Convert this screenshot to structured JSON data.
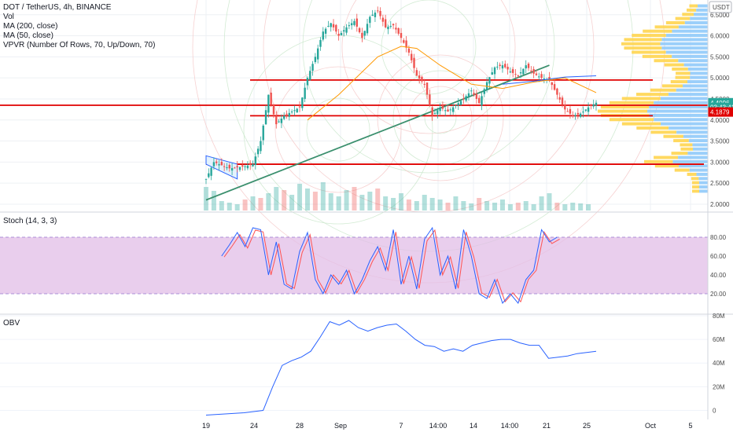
{
  "header": {
    "title": "DOT / TetherUS, 4h, BINANCE",
    "indicators": [
      "Vol",
      "MA (200, close)",
      "MA (50, close)",
      "VPVR (Number Of Rows, 70, Up/Down, 70)"
    ]
  },
  "currency_badge": "USDT",
  "price_tags": {
    "current": "4.4096",
    "countdown": "03:43:41",
    "level": "4.1879"
  },
  "colors": {
    "up": "#26a69a",
    "down": "#ef5350",
    "ma200": "#2962ff",
    "ma50": "#ff9800",
    "trendline": "#3a8f6d",
    "level_line": "#e00000",
    "stoch_band": "#e1bee7",
    "stoch_k": "#2962ff",
    "stoch_d": "#ff5252",
    "obv": "#2962ff",
    "vp_up": "#ffd54f",
    "vp_down": "#90caf9"
  },
  "chart_data": [
    {
      "type": "candlestick",
      "pane": "price",
      "symbol": "DOT / TetherUS",
      "timeframe": "4h",
      "exchange": "BINANCE",
      "ylim": [
        1.85,
        6.85
      ],
      "y_ticks": [
        2.0,
        2.5,
        3.0,
        3.5,
        4.0,
        4.5,
        5.0,
        5.5,
        6.0,
        6.5
      ],
      "y_tick_labels": [
        "2.0000",
        "2.5000",
        "3.0000",
        "3.5000",
        "4.0000",
        "4.5000",
        "5.0000",
        "5.5000",
        "6.0000",
        "6.5000"
      ],
      "x_tick_labels": [
        "19",
        "24",
        "28",
        "Sep",
        "7",
        "14:00",
        "14",
        "14:00",
        "21",
        "25",
        "Oct",
        "5"
      ],
      "price_path": [
        [
          0,
          2.6
        ],
        [
          1,
          3.0
        ],
        [
          3,
          2.85
        ],
        [
          5,
          2.9
        ],
        [
          6,
          2.95
        ],
        [
          7,
          3.5
        ],
        [
          8,
          4.6
        ],
        [
          9,
          3.9
        ],
        [
          10,
          4.1
        ],
        [
          12,
          4.3
        ],
        [
          13,
          5.0
        ],
        [
          14,
          5.5
        ],
        [
          15,
          6.1
        ],
        [
          16,
          6.3
        ],
        [
          17,
          6.0
        ],
        [
          18,
          6.2
        ],
        [
          19,
          6.35
        ],
        [
          20,
          5.95
        ],
        [
          21,
          6.45
        ],
        [
          22,
          6.6
        ],
        [
          23,
          6.2
        ],
        [
          24,
          6.25
        ],
        [
          25,
          5.95
        ],
        [
          26,
          5.6
        ],
        [
          27,
          5.05
        ],
        [
          28,
          4.85
        ],
        [
          29,
          4.1
        ],
        [
          30,
          4.3
        ],
        [
          31,
          4.2
        ],
        [
          32,
          4.35
        ],
        [
          33,
          4.5
        ],
        [
          34,
          4.7
        ],
        [
          35,
          4.4
        ],
        [
          36,
          4.9
        ],
        [
          37,
          5.25
        ],
        [
          38,
          5.3
        ],
        [
          39,
          5.15
        ],
        [
          40,
          5.05
        ],
        [
          41,
          5.3
        ],
        [
          42,
          5.1
        ],
        [
          43,
          5.0
        ],
        [
          44,
          4.95
        ],
        [
          45,
          4.6
        ],
        [
          46,
          4.25
        ],
        [
          47,
          4.1
        ],
        [
          48,
          4.15
        ],
        [
          49,
          4.3
        ],
        [
          50,
          4.41
        ]
      ],
      "horizontal_levels": [
        4.95,
        4.35,
        4.1,
        2.95
      ],
      "trendline": [
        [
          0,
          2.1
        ],
        [
          44,
          5.3
        ]
      ],
      "ma50": [
        [
          13,
          4.0
        ],
        [
          17,
          4.6
        ],
        [
          22,
          5.5
        ],
        [
          25,
          5.75
        ],
        [
          27,
          5.7
        ],
        [
          30,
          5.3
        ],
        [
          34,
          4.85
        ],
        [
          38,
          4.75
        ],
        [
          42,
          4.9
        ],
        [
          46,
          5.0
        ],
        [
          50,
          4.65
        ]
      ],
      "ma200": [
        [
          38,
          4.85
        ],
        [
          42,
          4.92
        ],
        [
          46,
          5.02
        ],
        [
          50,
          5.05
        ]
      ]
    },
    {
      "type": "histogram",
      "pane": "volume_profile",
      "name": "VPVR",
      "note": "horizontal volume-by-price, up/down split"
    },
    {
      "type": "line",
      "pane": "stoch",
      "title": "Stoch (14, 3, 3)",
      "ylim": [
        0,
        100
      ],
      "y_ticks": [
        20,
        40,
        60,
        80
      ],
      "y_tick_labels": [
        "20.00",
        "40.00",
        "60.00",
        "80.00"
      ],
      "band": [
        20,
        80
      ],
      "k": [
        [
          2,
          60
        ],
        [
          3,
          72
        ],
        [
          4,
          85
        ],
        [
          5,
          70
        ],
        [
          6,
          90
        ],
        [
          7,
          88
        ],
        [
          8,
          40
        ],
        [
          9,
          75
        ],
        [
          10,
          30
        ],
        [
          11,
          25
        ],
        [
          12,
          65
        ],
        [
          13,
          85
        ],
        [
          14,
          35
        ],
        [
          15,
          20
        ],
        [
          16,
          40
        ],
        [
          17,
          30
        ],
        [
          18,
          45
        ],
        [
          19,
          20
        ],
        [
          20,
          35
        ],
        [
          21,
          55
        ],
        [
          22,
          70
        ],
        [
          23,
          45
        ],
        [
          24,
          88
        ],
        [
          25,
          30
        ],
        [
          26,
          60
        ],
        [
          27,
          25
        ],
        [
          28,
          78
        ],
        [
          29,
          90
        ],
        [
          30,
          40
        ],
        [
          31,
          60
        ],
        [
          32,
          25
        ],
        [
          33,
          88
        ],
        [
          34,
          60
        ],
        [
          35,
          20
        ],
        [
          36,
          15
        ],
        [
          37,
          35
        ],
        [
          38,
          10
        ],
        [
          39,
          20
        ],
        [
          40,
          10
        ],
        [
          41,
          35
        ],
        [
          42,
          45
        ],
        [
          43,
          88
        ],
        [
          44,
          75
        ],
        [
          45,
          80
        ]
      ],
      "d_offset": 0.8
    },
    {
      "type": "line",
      "pane": "obv",
      "title": "OBV",
      "ylim": [
        -5,
        80
      ],
      "y_ticks": [
        0,
        20,
        40,
        60,
        80
      ],
      "y_tick_labels": [
        "0",
        "20M",
        "40M",
        "60M",
        "80M"
      ],
      "values": [
        [
          0,
          -4
        ],
        [
          2,
          -3
        ],
        [
          4,
          -2
        ],
        [
          6,
          0
        ],
        [
          7,
          20
        ],
        [
          8,
          38
        ],
        [
          9,
          42
        ],
        [
          10,
          45
        ],
        [
          11,
          50
        ],
        [
          12,
          62
        ],
        [
          13,
          75
        ],
        [
          14,
          72
        ],
        [
          15,
          76
        ],
        [
          16,
          70
        ],
        [
          17,
          67
        ],
        [
          18,
          70
        ],
        [
          19,
          72
        ],
        [
          20,
          73
        ],
        [
          21,
          67
        ],
        [
          22,
          60
        ],
        [
          23,
          55
        ],
        [
          24,
          54
        ],
        [
          25,
          50
        ],
        [
          26,
          52
        ],
        [
          27,
          50
        ],
        [
          28,
          55
        ],
        [
          29,
          57
        ],
        [
          30,
          59
        ],
        [
          31,
          60
        ],
        [
          32,
          60
        ],
        [
          33,
          57
        ],
        [
          34,
          55
        ],
        [
          35,
          55
        ],
        [
          36,
          44
        ],
        [
          37,
          45
        ],
        [
          38,
          46
        ],
        [
          39,
          48
        ],
        [
          40,
          49
        ],
        [
          41,
          50
        ]
      ]
    }
  ]
}
